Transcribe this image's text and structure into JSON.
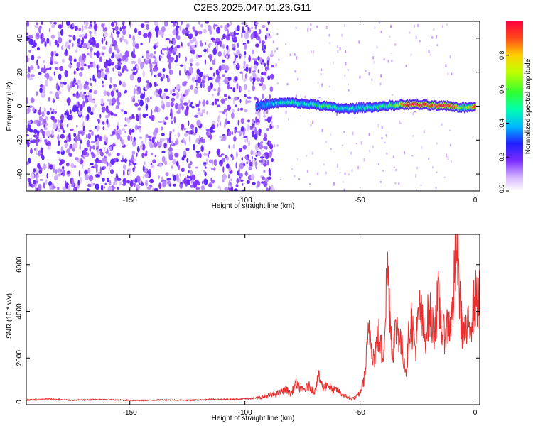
{
  "title": "C2E3.2025.047.01.23.G11",
  "spectrogram": {
    "xlabel": "Height of straight line (km)",
    "ylabel": "Frequency (Hz)",
    "xlim": [
      -195,
      2
    ],
    "ylim": [
      -50,
      50
    ],
    "xticks": [
      -150,
      -100,
      -50,
      0
    ],
    "xtick_labels": [
      "-150",
      "-100",
      "-50",
      "0"
    ],
    "yticks": [
      -40,
      -20,
      0,
      20,
      40
    ],
    "ytick_labels": [
      "-40",
      "-20",
      "0",
      "20",
      "40"
    ],
    "colorbar": {
      "label": "Normalized spectral amplitude",
      "range": [
        0,
        1
      ],
      "ticks": [
        0,
        0.2,
        0.4,
        0.6,
        0.8
      ],
      "tick_labels": [
        "0.0",
        "0.2",
        "0.4",
        "0.6",
        "0.8"
      ]
    }
  },
  "chart_data": [
    {
      "type": "heatmap",
      "xlabel": "Height of straight line (km)",
      "ylabel": "Frequency (Hz)",
      "xlim": [
        -195,
        2
      ],
      "ylim": [
        -50,
        50
      ],
      "noise_region_km": [
        -195,
        -88
      ],
      "ridge": {
        "x": [
          -95,
          -90,
          -85,
          -80,
          -75,
          -70,
          -65,
          -60,
          -55,
          -50,
          -45,
          -40,
          -35,
          -30,
          -25,
          -20,
          -15,
          -10,
          -5,
          0
        ],
        "freq_hz": [
          0,
          1,
          2,
          2,
          1.5,
          1,
          0,
          -1,
          -1.5,
          -1,
          -0.5,
          0,
          0.5,
          1,
          1,
          0.5,
          0,
          0,
          -1,
          0
        ],
        "amplitude": [
          0.25,
          0.35,
          0.45,
          0.5,
          0.45,
          0.5,
          0.55,
          0.5,
          0.45,
          0.45,
          0.5,
          0.55,
          0.6,
          0.95,
          0.95,
          0.9,
          0.95,
          0.95,
          0.6,
          0.9
        ]
      }
    },
    {
      "type": "line",
      "xlabel": "Height of straight line (km)",
      "ylabel": "SNR (10 * v/v)",
      "xlim": [
        -195,
        2
      ],
      "ylim": [
        0,
        7300
      ],
      "color": "#e83030",
      "x": [
        -195,
        -185,
        -175,
        -165,
        -155,
        -145,
        -135,
        -125,
        -115,
        -105,
        -100,
        -95,
        -90,
        -85,
        -82,
        -80,
        -78,
        -75,
        -72,
        -70,
        -68,
        -66,
        -64,
        -62,
        -60,
        -58,
        -56,
        -54,
        -52,
        -50,
        -48,
        -46,
        -44,
        -42,
        -40,
        -38,
        -36,
        -34,
        -32,
        -30,
        -28,
        -26,
        -24,
        -22,
        -20,
        -18,
        -16,
        -14,
        -12,
        -10,
        -8,
        -6,
        -4,
        -2,
        0
      ],
      "y": [
        200,
        240,
        190,
        220,
        200,
        180,
        210,
        190,
        220,
        230,
        260,
        280,
        380,
        500,
        650,
        450,
        900,
        600,
        800,
        550,
        1200,
        700,
        900,
        600,
        650,
        450,
        350,
        250,
        300,
        500,
        1200,
        3300,
        2000,
        3000,
        2000,
        6000,
        2200,
        3500,
        2500,
        1500,
        3800,
        2400,
        4200,
        2800,
        4000,
        3200,
        4500,
        2900,
        3400,
        3700,
        7000,
        3500,
        3000,
        3600,
        4500
      ]
    }
  ],
  "snr": {
    "xlabel": "Height of straight line (km)",
    "ylabel": "SNR (10 * v/v)",
    "xticks": [
      -150,
      -100,
      -50,
      0
    ],
    "xtick_labels": [
      "-150",
      "-100",
      "-50",
      "0"
    ],
    "yticks": [
      0,
      2000,
      4000,
      6000
    ],
    "ytick_labels": [
      "0",
      "2000",
      "4000",
      "6000"
    ]
  }
}
